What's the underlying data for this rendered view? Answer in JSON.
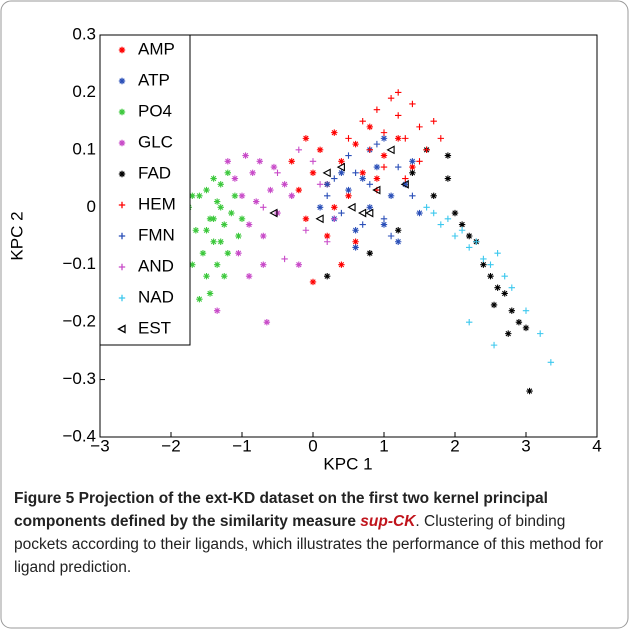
{
  "chart_data": {
    "type": "scatter",
    "xlabel": "KPC 1",
    "ylabel": "KPC 2",
    "xlim": [
      -3,
      4
    ],
    "ylim": [
      -0.4,
      0.3
    ],
    "xticks": [
      {
        "value": -3,
        "label": "−3"
      },
      {
        "value": -2,
        "label": "−2"
      },
      {
        "value": -1,
        "label": "−1"
      },
      0,
      1,
      2,
      3,
      4
    ],
    "yticks": [
      {
        "value": -0.4,
        "label": "−0.4"
      },
      {
        "value": -0.3,
        "label": "−0.3"
      },
      {
        "value": -0.2,
        "label": "−0.2"
      },
      {
        "value": -0.1,
        "label": "−0.1"
      },
      0,
      0.1,
      0.2,
      0.3
    ],
    "legend": "upper left",
    "series": [
      {
        "name": "AMP",
        "color": "#ff0000",
        "marker": "*",
        "x": [
          -0.3,
          -0.2,
          -0.1,
          0.0,
          0.1,
          0.2,
          0.3,
          0.4,
          0.5,
          0.6,
          0.7,
          0.8,
          0.9,
          1.0,
          1.2,
          1.4,
          0.2,
          0.4,
          0.0,
          -0.1,
          0.6,
          0.3
        ],
        "values": [
          0.08,
          0.03,
          0.12,
          0.06,
          0.1,
          0.04,
          0.13,
          0.08,
          0.02,
          0.11,
          0.06,
          0.14,
          0.05,
          0.09,
          0.12,
          0.07,
          -0.05,
          -0.1,
          -0.13,
          -0.02,
          -0.06,
          0.0
        ]
      },
      {
        "name": "ATP",
        "color": "#2a4fb8",
        "marker": "*",
        "x": [
          0.1,
          0.3,
          0.5,
          0.6,
          0.7,
          0.8,
          0.9,
          1.0,
          1.1,
          1.2,
          1.3,
          1.5,
          0.4,
          0.8,
          1.0,
          0.6,
          1.4,
          0.2
        ],
        "values": [
          0.0,
          -0.02,
          0.03,
          -0.04,
          0.05,
          0.0,
          0.07,
          -0.03,
          0.02,
          -0.06,
          0.04,
          -0.01,
          0.06,
          0.1,
          0.12,
          -0.07,
          0.08,
          0.04
        ]
      },
      {
        "name": "PO4",
        "color": "#3cc83c",
        "marker": "*",
        "x": [
          -1.9,
          -1.8,
          -1.75,
          -1.7,
          -1.65,
          -1.6,
          -1.55,
          -1.5,
          -1.5,
          -1.45,
          -1.4,
          -1.4,
          -1.35,
          -1.3,
          -1.3,
          -1.25,
          -1.2,
          -1.2,
          -1.15,
          -1.1,
          -1.05,
          -1.0,
          -1.6,
          -1.45,
          -1.35,
          -1.25,
          -1.7,
          -1.5,
          -1.4,
          -1.3
        ],
        "values": [
          -0.02,
          -0.06,
          0.0,
          -0.1,
          -0.04,
          0.02,
          -0.08,
          -0.12,
          0.03,
          -0.02,
          0.05,
          -0.06,
          -0.1,
          0.0,
          0.04,
          -0.03,
          0.06,
          -0.08,
          -0.01,
          0.02,
          -0.05,
          -0.02,
          -0.16,
          -0.15,
          0.01,
          -0.12,
          0.02,
          -0.04,
          -0.02,
          -0.06
        ]
      },
      {
        "name": "GLC",
        "color": "#c84ac8",
        "marker": "*",
        "x": [
          -1.2,
          -1.1,
          -1.0,
          -0.95,
          -0.9,
          -0.85,
          -0.8,
          -0.75,
          -0.7,
          -0.6,
          -0.5,
          -0.4,
          -0.3,
          -1.05,
          -0.9,
          -0.7,
          -0.55,
          -1.35,
          -0.2,
          -0.65
        ],
        "values": [
          0.08,
          0.05,
          0.02,
          0.09,
          -0.03,
          0.06,
          0.01,
          0.08,
          -0.05,
          0.03,
          -0.01,
          0.04,
          0.02,
          -0.08,
          -0.12,
          -0.1,
          0.07,
          -0.18,
          -0.1,
          -0.2
        ]
      },
      {
        "name": "FAD",
        "color": "#000000",
        "marker": "*",
        "x": [
          1.4,
          1.6,
          1.7,
          1.9,
          2.0,
          2.1,
          2.3,
          2.4,
          2.5,
          2.6,
          2.7,
          2.8,
          2.9,
          3.0,
          2.75,
          2.55,
          3.05,
          0.2,
          0.8,
          1.2,
          1.9,
          2.2
        ],
        "values": [
          0.06,
          0.1,
          0.02,
          0.05,
          -0.01,
          -0.03,
          -0.06,
          -0.1,
          -0.12,
          -0.14,
          -0.15,
          -0.18,
          -0.2,
          -0.21,
          -0.22,
          -0.17,
          -0.32,
          -0.12,
          -0.08,
          -0.04,
          0.09,
          -0.05
        ]
      },
      {
        "name": "HEM",
        "color": "#ff0000",
        "marker": "+",
        "x": [
          0.5,
          0.7,
          0.8,
          0.9,
          1.0,
          1.1,
          1.2,
          1.3,
          1.4,
          1.5,
          1.6,
          1.7,
          1.8,
          1.0,
          1.3,
          0.9,
          1.5,
          1.2
        ],
        "values": [
          0.12,
          0.15,
          0.1,
          0.17,
          0.13,
          0.19,
          0.16,
          0.12,
          0.18,
          0.14,
          0.1,
          0.15,
          0.12,
          0.07,
          0.05,
          0.03,
          0.08,
          0.2
        ]
      },
      {
        "name": "FMN",
        "color": "#2a4fb8",
        "marker": "+",
        "x": [
          0.2,
          0.4,
          0.6,
          0.8,
          1.0,
          1.2,
          1.4,
          0.5,
          0.9,
          1.1,
          0.3,
          0.7
        ],
        "values": [
          0.02,
          -0.01,
          0.06,
          0.04,
          -0.02,
          0.07,
          0.02,
          0.09,
          0.11,
          -0.05,
          0.05,
          -0.03
        ]
      },
      {
        "name": "AND",
        "color": "#c84ac8",
        "marker": "+",
        "x": [
          -0.5,
          -0.3,
          -0.1,
          0.0,
          0.2,
          -0.7,
          -0.4,
          0.1,
          -0.2,
          0.3
        ],
        "values": [
          0.06,
          0.02,
          -0.04,
          0.08,
          -0.06,
          0.0,
          -0.09,
          0.04,
          0.1,
          -0.02
        ]
      },
      {
        "name": "NAD",
        "color": "#3cc8ee",
        "marker": "+",
        "x": [
          1.6,
          1.8,
          1.9,
          2.0,
          2.1,
          2.2,
          2.3,
          2.4,
          2.5,
          2.6,
          2.7,
          2.8,
          3.0,
          3.2,
          3.35,
          2.2,
          2.55,
          1.7
        ],
        "values": [
          0.0,
          -0.03,
          -0.02,
          -0.05,
          -0.04,
          -0.07,
          -0.06,
          -0.09,
          -0.1,
          -0.08,
          -0.12,
          -0.14,
          -0.18,
          -0.22,
          -0.27,
          -0.2,
          -0.24,
          -0.01
        ]
      },
      {
        "name": "EST",
        "color": "#000000",
        "marker": "<",
        "x": [
          -0.55,
          0.1,
          0.2,
          0.4,
          0.55,
          0.7,
          0.8,
          0.9,
          1.1,
          1.3
        ],
        "values": [
          -0.01,
          -0.02,
          0.06,
          0.07,
          0,
          -0.01,
          -0.01,
          0.03,
          0.1,
          0.04
        ]
      }
    ]
  },
  "caption": {
    "label": "Figure 5",
    "title": "Projection of the ext-KD dataset on the first two kernel principal components defined by the similarity measure",
    "method": "sup-CK",
    "text": ". Clustering of binding pockets according to their ligands, which illustrates the performance of this method for ligand prediction."
  }
}
